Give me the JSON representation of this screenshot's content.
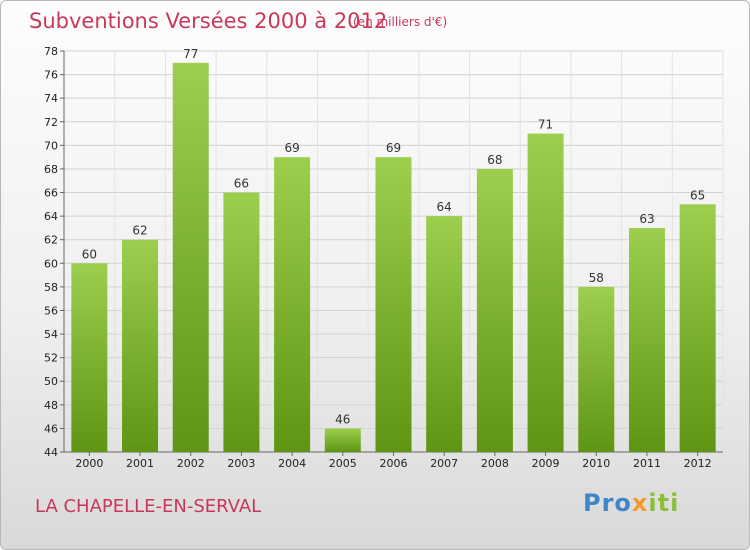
{
  "header": {
    "title": "Subventions Versées 2000 à 2012",
    "unit": "(en milliers d'€)"
  },
  "footer": {
    "commune": "LA CHAPELLE-EN-SERVAL",
    "logo_parts": [
      "Pro",
      "x",
      "iti"
    ]
  },
  "colors": {
    "title": "#c8385a",
    "bar_light": "#9ccf4e",
    "bar_dark": "#5e9512",
    "logo_blue": "#3f86c9",
    "logo_orange": "#f29a2e",
    "logo_green": "#8bbf3a"
  },
  "chart_data": {
    "type": "bar",
    "title": "Subventions Versées 2000 à 2012",
    "categories": [
      "2000",
      "2001",
      "2002",
      "2003",
      "2004",
      "2005",
      "2006",
      "2007",
      "2008",
      "2009",
      "2010",
      "2011",
      "2012"
    ],
    "values": [
      60,
      62,
      77,
      66,
      69,
      46,
      69,
      64,
      68,
      71,
      58,
      63,
      65
    ],
    "ylim": [
      44,
      78
    ],
    "ytick_step": 2,
    "grid": true,
    "data_labels": true
  }
}
